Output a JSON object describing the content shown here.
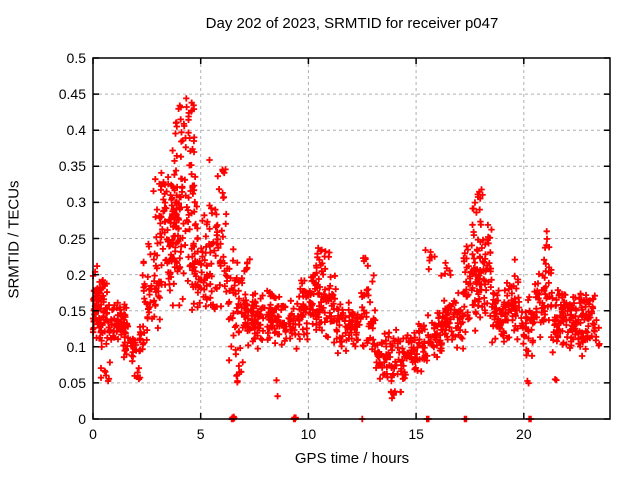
{
  "chart_data": {
    "type": "scatter",
    "title": "Day 202 of 2023, SRMTID for receiver p047",
    "xlabel": "GPS time / hours",
    "ylabel": "SRMTID / TECUs",
    "xlim": [
      0,
      24
    ],
    "ylim": [
      0,
      0.5
    ],
    "xticks": [
      "0",
      "5",
      "10",
      "15",
      "20"
    ],
    "xtick_values": [
      0,
      5,
      10,
      15,
      20
    ],
    "yticks": [
      "0",
      "0.05",
      "0.1",
      "0.15",
      "0.2",
      "0.25",
      "0.3",
      "0.35",
      "0.4",
      "0.45",
      "0.5"
    ],
    "ytick_values": [
      0,
      0.05,
      0.1,
      0.15,
      0.2,
      0.25,
      0.3,
      0.35,
      0.4,
      0.45,
      0.5
    ],
    "grid": true,
    "legend": false,
    "marker": "plus-cross",
    "marker_color": "#ff0000",
    "grid_color": "#b0b0b0",
    "border_color": "#000000",
    "background": "#ffffff",
    "series_name": "SRMTID",
    "notes": "Dense noisy time series of ~1900 red '+' points. point_clusters encode the depicted distribution as [start_hour, end_hour, n_points, min_value, max_value]; values within each cluster are centrally (triangularly) distributed. Main peak ~0.47 TECUs near hour 4.3; secondary peaks ~0.37 near hour 5.8, ~0.32 near hour 17.9, ~0.26 near hour 21; background band ~0.08-0.17 all day; quiet dip ~0.03-0.12 near hours 13-14.5. A few points lie exactly on y=0 (zero_points).",
    "point_clusters": [
      [
        0.0,
        0.7,
        85,
        0.095,
        0.215
      ],
      [
        0.0,
        0.35,
        10,
        0.15,
        0.22
      ],
      [
        0.3,
        1.0,
        8,
        0.045,
        0.085
      ],
      [
        0.7,
        1.6,
        65,
        0.1,
        0.165
      ],
      [
        1.3,
        2.4,
        45,
        0.075,
        0.145
      ],
      [
        1.9,
        2.3,
        6,
        0.05,
        0.075
      ],
      [
        2.3,
        3.1,
        55,
        0.1,
        0.26
      ],
      [
        2.7,
        3.5,
        22,
        0.25,
        0.35
      ],
      [
        3.1,
        3.9,
        65,
        0.13,
        0.33
      ],
      [
        3.6,
        4.8,
        105,
        0.15,
        0.4
      ],
      [
        3.8,
        4.7,
        28,
        0.36,
        0.47
      ],
      [
        4.6,
        5.5,
        65,
        0.13,
        0.3
      ],
      [
        5.4,
        6.2,
        55,
        0.14,
        0.37
      ],
      [
        6.2,
        7.1,
        50,
        0.07,
        0.25
      ],
      [
        6.4,
        7.0,
        8,
        0.04,
        0.09
      ],
      [
        7.0,
        8.4,
        105,
        0.095,
        0.185
      ],
      [
        7.0,
        7.3,
        7,
        0.19,
        0.23
      ],
      [
        8.4,
        9.6,
        65,
        0.095,
        0.175
      ],
      [
        8.5,
        8.8,
        2,
        0.026,
        0.06
      ],
      [
        9.6,
        11.3,
        125,
        0.1,
        0.225
      ],
      [
        10.2,
        11.0,
        9,
        0.215,
        0.24
      ],
      [
        11.3,
        12.4,
        65,
        0.085,
        0.165
      ],
      [
        12.4,
        13.1,
        42,
        0.075,
        0.21
      ],
      [
        12.5,
        12.9,
        5,
        0.205,
        0.235
      ],
      [
        13.1,
        14.6,
        85,
        0.045,
        0.125
      ],
      [
        13.7,
        14.4,
        8,
        0.028,
        0.05
      ],
      [
        14.6,
        15.5,
        55,
        0.06,
        0.14
      ],
      [
        15.4,
        15.9,
        7,
        0.2,
        0.25
      ],
      [
        15.5,
        16.3,
        50,
        0.075,
        0.16
      ],
      [
        16.1,
        16.6,
        6,
        0.19,
        0.225
      ],
      [
        16.3,
        17.2,
        60,
        0.09,
        0.185
      ],
      [
        17.2,
        18.5,
        115,
        0.115,
        0.27
      ],
      [
        17.6,
        18.2,
        14,
        0.26,
        0.325
      ],
      [
        18.5,
        19.2,
        55,
        0.1,
        0.19
      ],
      [
        19.2,
        19.8,
        42,
        0.1,
        0.235
      ],
      [
        19.8,
        20.5,
        38,
        0.085,
        0.185
      ],
      [
        20.1,
        20.3,
        2,
        0.04,
        0.055
      ],
      [
        20.5,
        21.3,
        50,
        0.1,
        0.23
      ],
      [
        20.9,
        21.2,
        5,
        0.23,
        0.262
      ],
      [
        21.3,
        22.3,
        80,
        0.09,
        0.185
      ],
      [
        21.4,
        21.6,
        2,
        0.05,
        0.06
      ],
      [
        22.3,
        23.3,
        80,
        0.085,
        0.185
      ],
      [
        23.3,
        23.55,
        6,
        0.1,
        0.15
      ]
    ],
    "zero_points": [
      [
        6.44,
        0
      ],
      [
        6.47,
        0.002
      ],
      [
        6.5,
        0
      ],
      [
        6.53,
        0.003
      ],
      [
        6.56,
        0.001
      ],
      [
        9.32,
        0
      ],
      [
        9.35,
        0.002
      ],
      [
        9.38,
        0
      ],
      [
        9.41,
        0.002
      ],
      [
        12.5,
        0
      ],
      [
        15.5,
        0
      ],
      [
        15.58,
        0
      ],
      [
        17.25,
        0
      ],
      [
        17.33,
        0
      ],
      [
        20.25,
        0
      ],
      [
        20.33,
        0
      ]
    ]
  }
}
